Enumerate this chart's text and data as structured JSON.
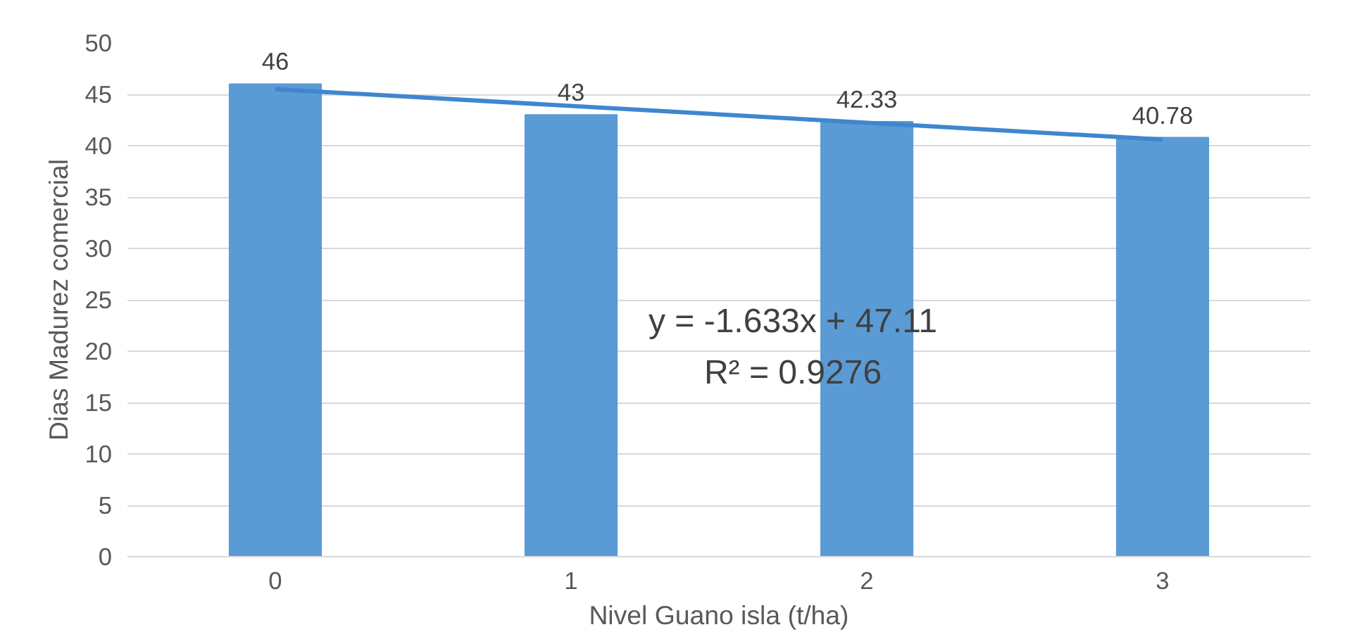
{
  "chart_data": {
    "type": "bar",
    "xlabel": "Nivel Guano isla (t/ha)",
    "ylabel": "Dias Madurez comercial",
    "categories": [
      "0",
      "1",
      "2",
      "3"
    ],
    "series": [
      {
        "color": "#5b9bd5",
        "values": [
          46,
          43,
          42.33,
          40.78
        ],
        "data_labels": true
      },
      {
        "type": "line",
        "color": "#3f86cf",
        "x": [
          "0",
          "3"
        ],
        "values": [
          45.5,
          40.6
        ]
      }
    ],
    "ylim": [
      0,
      50
    ],
    "yticks": [
      0,
      5,
      10,
      15,
      20,
      25,
      30,
      35,
      40,
      45,
      50
    ],
    "grid": "y",
    "annotations": [
      "y = -1.633x + 47.11",
      "R² = 0.9276"
    ]
  }
}
